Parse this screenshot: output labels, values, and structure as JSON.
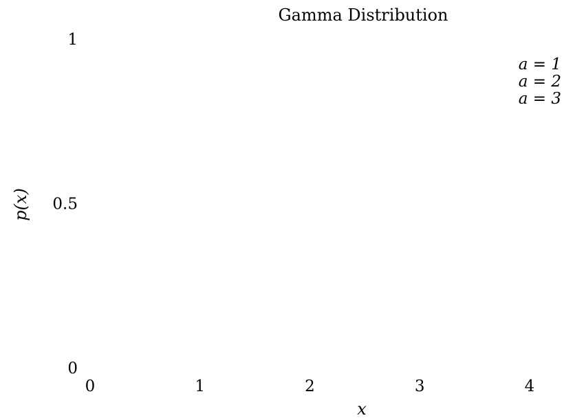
{
  "chart_data": {
    "type": "line",
    "title": "Gamma Distribution",
    "xlabel": "x",
    "ylabel": "p(x)",
    "xlim": [
      0,
      4
    ],
    "ylim": [
      0,
      1
    ],
    "x_ticks": [
      "0",
      "1",
      "2",
      "3",
      "4"
    ],
    "y_ticks": [
      "0",
      "0.5",
      "1"
    ],
    "grid": false,
    "legend_position": "top-right",
    "series": [
      {
        "name": "a = 1",
        "values": []
      },
      {
        "name": "a = 2",
        "values": []
      },
      {
        "name": "a = 3",
        "values": []
      }
    ]
  }
}
